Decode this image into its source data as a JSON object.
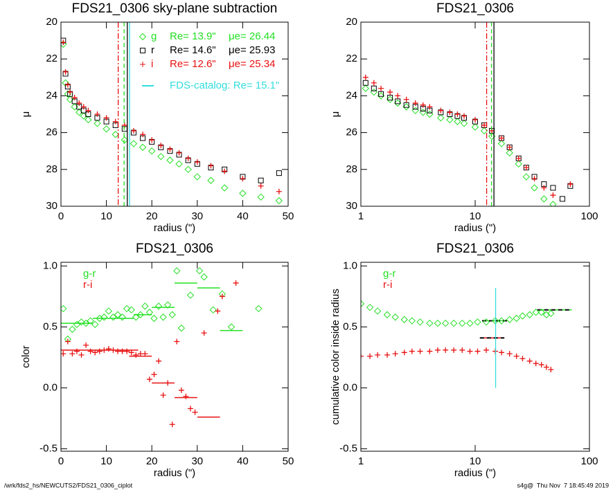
{
  "chart_data": [
    {
      "type": "scatter",
      "title": "FDS21_0306 sky-plane subtraction",
      "x_label": "radius (\")",
      "y_label": "μ",
      "xlim": [
        0,
        50
      ],
      "xticks": [
        0,
        10,
        20,
        30,
        40,
        50
      ],
      "ylim": [
        30,
        20
      ],
      "yticks": [
        20,
        22,
        24,
        26,
        28,
        30
      ],
      "series": [
        {
          "name": "g",
          "color": "#22e022",
          "marker": "diamond",
          "re_label": "Re= 13.9\"",
          "mue_label": "μe= 26.44",
          "x": [
            0.5,
            1,
            1.5,
            2,
            3,
            4,
            5,
            6,
            8,
            10,
            12,
            14,
            16,
            18,
            20,
            22,
            24,
            26,
            28,
            30,
            33,
            36,
            40,
            44,
            48
          ],
          "values": [
            21.2,
            23.3,
            23.9,
            24.2,
            24.6,
            24.9,
            25.1,
            25.3,
            25.5,
            25.8,
            26.1,
            26.4,
            26.6,
            26.8,
            27.0,
            27.3,
            27.5,
            27.7,
            28.0,
            28.4,
            28.6,
            29.0,
            29.3,
            29.5,
            29.7
          ]
        },
        {
          "name": "r",
          "color": "#000000",
          "marker": "square",
          "re_label": "Re= 14.6\"",
          "mue_label": "μe= 25.93",
          "x": [
            0.5,
            1,
            1.5,
            2,
            3,
            4,
            5,
            6,
            8,
            10,
            12,
            14,
            16,
            18,
            20,
            22,
            24,
            26,
            28,
            30,
            33,
            36,
            40,
            44,
            48
          ],
          "values": [
            21.0,
            22.8,
            23.5,
            23.9,
            24.3,
            24.6,
            24.8,
            25.0,
            25.2,
            25.4,
            25.6,
            25.8,
            26.0,
            26.3,
            26.5,
            26.8,
            27.0,
            27.2,
            27.5,
            27.7,
            27.9,
            28.0,
            28.4,
            28.6,
            28.2
          ]
        },
        {
          "name": "i",
          "color": "#e81010",
          "marker": "plus",
          "re_label": "Re= 12.6\"",
          "mue_label": "μe= 25.34",
          "x": [
            0.5,
            1,
            1.5,
            2,
            3,
            4,
            5,
            6,
            8,
            10,
            12,
            14,
            16,
            18,
            20,
            22,
            24,
            26,
            28,
            30,
            33,
            36,
            40,
            44,
            48
          ],
          "values": [
            21.1,
            22.7,
            23.4,
            23.8,
            24.1,
            24.4,
            24.6,
            24.8,
            25.0,
            25.2,
            25.4,
            25.6,
            25.9,
            26.1,
            26.4,
            26.7,
            26.9,
            27.1,
            27.4,
            27.6,
            27.8,
            28.1,
            28.5,
            28.9,
            29.2
          ]
        }
      ],
      "catalog": {
        "text": "FDS-catalog: Re= 15.1\"",
        "color": "#33dddd"
      },
      "vlines": [
        {
          "value": 12.6,
          "color": "#e81010",
          "dash": "dashdot"
        },
        {
          "value": 13.9,
          "color": "#22e022",
          "dash": "dashed"
        },
        {
          "value": 14.6,
          "color": "#000000",
          "dash": "solid"
        },
        {
          "value": 15.1,
          "color": "#33dddd",
          "dash": "solid"
        }
      ]
    },
    {
      "type": "scatter",
      "title": "FDS21_0306",
      "x_label": "radius (\")",
      "y_label": "μ",
      "log_x": true,
      "xlim": [
        1,
        100
      ],
      "xticks": [
        1,
        10,
        100
      ],
      "ylim": [
        30,
        20
      ],
      "yticks": [
        20,
        22,
        24,
        26,
        28,
        30
      ],
      "series": [
        {
          "color": "#22e022",
          "marker": "diamond",
          "x": [
            1.1,
            1.3,
            1.5,
            1.8,
            2.1,
            2.5,
            3,
            3.5,
            4,
            5,
            6,
            7,
            8,
            10,
            12,
            14,
            17,
            20,
            24,
            28,
            33,
            40,
            48
          ],
          "values": [
            23.6,
            23.8,
            24.0,
            24.2,
            24.4,
            24.6,
            24.8,
            24.9,
            25.0,
            25.2,
            25.3,
            25.4,
            25.5,
            25.7,
            25.9,
            26.2,
            26.6,
            27.1,
            27.7,
            28.4,
            29.0,
            29.6,
            29.9
          ]
        },
        {
          "color": "#000000",
          "marker": "square",
          "x": [
            1.1,
            1.3,
            1.5,
            1.8,
            2.1,
            2.5,
            3,
            3.5,
            4,
            5,
            6,
            7,
            8,
            10,
            12,
            14,
            17,
            20,
            24,
            28,
            33,
            40,
            48,
            58,
            68
          ],
          "values": [
            23.3,
            23.6,
            23.9,
            24.1,
            24.3,
            24.5,
            24.6,
            24.7,
            24.8,
            24.9,
            25.0,
            25.1,
            25.2,
            25.4,
            25.6,
            25.9,
            26.3,
            26.8,
            27.4,
            27.9,
            28.4,
            28.8,
            29.0,
            29.6,
            28.9
          ]
        },
        {
          "color": "#e81010",
          "marker": "plus",
          "x": [
            1.1,
            1.3,
            1.5,
            1.8,
            2.1,
            2.5,
            3,
            3.5,
            4,
            5,
            6,
            7,
            8,
            10,
            12,
            14,
            17,
            20,
            24,
            28,
            33,
            40,
            48,
            68
          ],
          "values": [
            23.0,
            23.3,
            23.6,
            23.8,
            24.0,
            24.2,
            24.4,
            24.5,
            24.6,
            24.8,
            24.9,
            25.0,
            25.1,
            25.3,
            25.6,
            25.9,
            26.3,
            26.8,
            27.4,
            27.9,
            28.5,
            29.0,
            29.4,
            28.8
          ]
        }
      ],
      "vlines": [
        {
          "value": 12.6,
          "color": "#e81010",
          "dash": "dashdot"
        },
        {
          "value": 13.9,
          "color": "#22e022",
          "dash": "dashed"
        },
        {
          "value": 14.6,
          "color": "#000000",
          "dash": "solid"
        }
      ]
    },
    {
      "type": "scatter",
      "title": "FDS21_0306",
      "x_label": "radius (\")",
      "y_label": "color",
      "legend": true,
      "xlim": [
        0,
        50
      ],
      "xticks": [
        0,
        10,
        20,
        30,
        40,
        50
      ],
      "ylim": [
        -0.52,
        1.03
      ],
      "yticks": [
        {
          "value": -0.5,
          "label": "-0.5"
        },
        {
          "value": 0,
          "label": "0.0"
        },
        {
          "value": 0.5,
          "label": "0.5"
        },
        {
          "value": 1,
          "label": "1.0"
        }
      ],
      "series": [
        {
          "name": "g-r",
          "color": "#22e022",
          "marker": "diamond",
          "x": [
            0.5,
            1.5,
            2.5,
            3.5,
            4.5,
            5.5,
            6.5,
            7.5,
            8.5,
            9.5,
            10.5,
            11.5,
            12.5,
            13.5,
            14.5,
            15.5,
            16.5,
            17.5,
            18.5,
            19.5,
            20.5,
            21.5,
            22.5,
            23.5,
            24.5,
            25.5,
            26.5,
            28.5,
            30.5,
            31.5,
            33.5,
            35.5,
            37.5,
            43.5
          ],
          "values": [
            0.65,
            0.4,
            0.48,
            0.52,
            0.54,
            0.53,
            0.55,
            0.52,
            0.57,
            0.58,
            0.63,
            0.58,
            0.6,
            0.58,
            0.65,
            0.64,
            0.58,
            0.6,
            0.67,
            0.62,
            0.57,
            0.67,
            0.58,
            0.68,
            0.6,
            0.96,
            0.49,
            0.76,
            0.96,
            0.91,
            0.64,
            0.77,
            0.5,
            0.65
          ]
        },
        {
          "name": "r-i",
          "color": "#e81010",
          "marker": "plus",
          "x": [
            0.5,
            1.5,
            2.5,
            3.5,
            4.5,
            5.5,
            6.5,
            7.5,
            8.5,
            9.5,
            10.5,
            11.5,
            12.5,
            13.5,
            14.5,
            15.5,
            16.5,
            17.5,
            18.5,
            19.5,
            20.5,
            21.5,
            22.5,
            23.5,
            24.5,
            25.5,
            26.5,
            27.5,
            28.5,
            29.5,
            31.5,
            34.5,
            35.5,
            38.5
          ],
          "values": [
            0.28,
            0.38,
            0.28,
            0.3,
            0.27,
            0.35,
            0.3,
            0.29,
            0.3,
            0.31,
            0.32,
            0.31,
            0.3,
            0.3,
            0.3,
            0.29,
            0.27,
            0.28,
            0.28,
            0.07,
            0.11,
            0.22,
            -0.06,
            0.04,
            -0.3,
            0.38,
            -0.02,
            -0.07,
            -0.17,
            -0.2,
            0.45,
            0.63,
            0.75,
            0.86
          ]
        }
      ],
      "segments": [
        {
          "x": [
            0,
            7
          ],
          "value": 0.53,
          "color": "#22e022"
        },
        {
          "x": [
            7,
            16
          ],
          "value": 0.57,
          "color": "#22e022"
        },
        {
          "x": [
            16,
            20
          ],
          "value": 0.6,
          "color": "#22e022"
        },
        {
          "x": [
            20,
            25
          ],
          "value": 0.66,
          "color": "#22e022"
        },
        {
          "x": [
            25,
            30
          ],
          "value": 0.86,
          "color": "#22e022"
        },
        {
          "x": [
            30,
            35
          ],
          "value": 0.82,
          "color": "#22e022"
        },
        {
          "x": [
            35,
            40
          ],
          "value": 0.47,
          "color": "#22e022"
        },
        {
          "x": [
            0,
            17
          ],
          "value": 0.31,
          "color": "#e81010"
        },
        {
          "x": [
            15,
            20
          ],
          "value": 0.26,
          "color": "#e81010"
        },
        {
          "x": [
            20,
            25
          ],
          "value": 0.04,
          "color": "#e81010"
        },
        {
          "x": [
            25,
            30
          ],
          "value": -0.08,
          "color": "#e81010"
        },
        {
          "x": [
            30,
            35
          ],
          "value": -0.24,
          "color": "#e81010"
        }
      ]
    },
    {
      "type": "scatter",
      "title": "FDS21_0306",
      "x_label": "radius (\")",
      "y_label": "cumulative color inside radius",
      "legend": true,
      "log_x": true,
      "xlim": [
        1,
        100
      ],
      "xticks": [
        1,
        10,
        100
      ],
      "ylim": [
        -0.52,
        1.03
      ],
      "yticks": [
        {
          "value": -0.5,
          "label": "-0.5"
        },
        {
          "value": 0,
          "label": "0.0"
        },
        {
          "value": 0.5,
          "label": "0.5"
        },
        {
          "value": 1,
          "label": "1.0"
        }
      ],
      "series": [
        {
          "name": "g-r",
          "color": "#22e022",
          "marker": "diamond",
          "x": [
            1.0,
            1.2,
            1.4,
            1.7,
            2,
            2.4,
            2.8,
            3.3,
            4,
            4.7,
            5.5,
            6.5,
            7.7,
            9,
            10.5,
            12.5,
            15,
            17,
            20,
            23,
            26,
            30,
            34,
            38,
            42,
            46
          ],
          "values": [
            0.69,
            0.66,
            0.63,
            0.6,
            0.58,
            0.56,
            0.55,
            0.54,
            0.53,
            0.53,
            0.53,
            0.53,
            0.53,
            0.53,
            0.54,
            0.54,
            0.55,
            0.55,
            0.56,
            0.57,
            0.59,
            0.6,
            0.62,
            0.62,
            0.6,
            0.61
          ]
        },
        {
          "name": "r-i",
          "color": "#e81010",
          "marker": "plus",
          "x": [
            1.0,
            1.2,
            1.4,
            1.7,
            2,
            2.4,
            2.8,
            3.3,
            4,
            4.7,
            5.5,
            6.5,
            7.7,
            9,
            10.5,
            12.5,
            15,
            17,
            20,
            23,
            26,
            30,
            34,
            38,
            42,
            46
          ],
          "values": [
            0.26,
            0.26,
            0.27,
            0.27,
            0.28,
            0.29,
            0.3,
            0.3,
            0.3,
            0.31,
            0.31,
            0.31,
            0.31,
            0.3,
            0.3,
            0.31,
            0.3,
            0.29,
            0.28,
            0.26,
            0.24,
            0.22,
            0.2,
            0.19,
            0.17,
            0.15
          ]
        }
      ],
      "segments": [
        {
          "x": [
            11.5,
            19
          ],
          "value": 0.55,
          "color": "#22e022",
          "dash": "dashed"
        },
        {
          "x": [
            11,
            18
          ],
          "value": 0.41,
          "color": "#e81010",
          "dash": "dashed"
        },
        {
          "x": [
            35,
            70
          ],
          "value": 0.64,
          "color": "#22e022",
          "dash": "dashed"
        }
      ],
      "vlines": [
        {
          "value": 15.1,
          "color": "#33dddd",
          "dash": "solid",
          "ymin": 0,
          "ymax": 0.82
        }
      ]
    }
  ],
  "footer": {
    "left": "/wrk/fds2_hs/NEWCUTS2/FDS21_0306_ciplot",
    "right": "s4g@  Thu Nov  7 18:45:49 2019"
  }
}
